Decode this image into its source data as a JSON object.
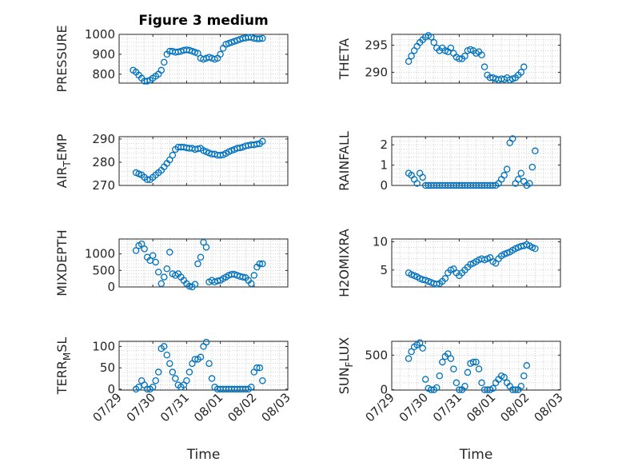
{
  "figure": {
    "title": "Figure 3 medium",
    "xlabel": "Time"
  },
  "chart_data": [
    {
      "type": "scatter",
      "title": "Figure 3 medium",
      "ylabel": "PRESSURE",
      "ylabel_sub": [],
      "ylim": [
        755,
        1000
      ],
      "yticks": [
        800,
        900,
        1000
      ],
      "ytick_labels": [
        "800",
        "900",
        "1000"
      ],
      "xlim": [
        "07/29",
        "08/03"
      ],
      "grid": "on",
      "x": [
        "07/29 10:00",
        "07/29 12:00",
        "07/29 14:00",
        "07/29 16:00",
        "07/29 18:00",
        "07/29 20:00",
        "07/29 22:00",
        "07/30 00:00",
        "07/30 02:00",
        "07/30 04:00",
        "07/30 06:00",
        "07/30 08:00",
        "07/30 10:00",
        "07/30 12:00",
        "07/30 14:00",
        "07/30 16:00",
        "07/30 18:00",
        "07/30 20:00",
        "07/30 22:00",
        "07/31 00:00",
        "07/31 02:00",
        "07/31 04:00",
        "07/31 06:00",
        "07/31 08:00",
        "07/31 10:00",
        "07/31 12:00",
        "07/31 14:00",
        "07/31 16:00",
        "07/31 18:00",
        "07/31 20:00",
        "07/31 22:00",
        "08/01 00:00",
        "08/01 02:00",
        "08/01 04:00",
        "08/01 06:00",
        "08/01 08:00",
        "08/01 10:00",
        "08/01 12:00",
        "08/01 14:00",
        "08/01 16:00",
        "08/01 18:00",
        "08/01 20:00",
        "08/01 22:00",
        "08/02 00:00",
        "08/02 02:00",
        "08/02 04:00",
        "08/02 06:00"
      ],
      "y": [
        820,
        810,
        795,
        780,
        765,
        765,
        770,
        780,
        790,
        800,
        820,
        860,
        900,
        915,
        915,
        910,
        912,
        915,
        920,
        922,
        920,
        915,
        910,
        905,
        880,
        875,
        880,
        885,
        880,
        875,
        880,
        900,
        930,
        950,
        955,
        960,
        965,
        970,
        975,
        980,
        982,
        985,
        985,
        980,
        978,
        978,
        980
      ]
    },
    {
      "type": "scatter",
      "ylabel": "THETA",
      "ylabel_sub": [],
      "ylim": [
        288,
        297
      ],
      "yticks": [
        290,
        295
      ],
      "ytick_labels": [
        "290",
        "295"
      ],
      "xlim": [
        "07/29",
        "08/03"
      ],
      "grid": "on",
      "x": [
        "07/29 12:00",
        "07/29 14:00",
        "07/29 16:00",
        "07/29 18:00",
        "07/29 20:00",
        "07/29 22:00",
        "07/30 00:00",
        "07/30 02:00",
        "07/30 04:00",
        "07/30 06:00",
        "07/30 08:00",
        "07/30 10:00",
        "07/30 12:00",
        "07/30 14:00",
        "07/30 16:00",
        "07/30 18:00",
        "07/30 20:00",
        "07/30 22:00",
        "07/31 00:00",
        "07/31 02:00",
        "07/31 04:00",
        "07/31 06:00",
        "07/31 08:00",
        "07/31 10:00",
        "07/31 12:00",
        "07/31 14:00",
        "07/31 16:00",
        "07/31 18:00",
        "07/31 20:00",
        "07/31 22:00",
        "08/01 00:00",
        "08/01 02:00",
        "08/01 04:00",
        "08/01 06:00",
        "08/01 08:00",
        "08/01 10:00",
        "08/01 12:00",
        "08/01 14:00",
        "08/01 16:00",
        "08/01 18:00",
        "08/01 20:00",
        "08/01 22:00",
        "08/02 00:00",
        "08/02 02:00",
        "08/02 04:00",
        "08/02 06:00"
      ],
      "y": [
        292,
        293,
        294,
        294.8,
        295.5,
        296,
        296.5,
        296.8,
        296.5,
        295.5,
        294.5,
        294,
        294.5,
        294,
        293.8,
        294.5,
        293.5,
        292.8,
        292.5,
        292.5,
        293,
        294,
        294.2,
        294,
        293.5,
        293.8,
        293.2,
        291,
        289.5,
        289,
        289,
        288.8,
        288.6,
        288.8,
        288.7,
        289,
        288.6,
        288.8,
        289,
        289.5,
        290,
        291,
        null,
        null,
        null,
        null
      ]
    },
    {
      "type": "scatter",
      "ylabel": "AIR",
      "ylabel_sub": [
        "T",
        "EMP"
      ],
      "ylim": [
        270,
        291
      ],
      "yticks": [
        270,
        280,
        290
      ],
      "ytick_labels": [
        "270",
        "280",
        "290"
      ],
      "xlim": [
        "07/29",
        "08/03"
      ],
      "grid": "on",
      "x": [
        "07/29 12:00",
        "07/29 14:00",
        "07/29 16:00",
        "07/29 18:00",
        "07/29 20:00",
        "07/29 22:00",
        "07/30 00:00",
        "07/30 02:00",
        "07/30 04:00",
        "07/30 06:00",
        "07/30 08:00",
        "07/30 10:00",
        "07/30 12:00",
        "07/30 14:00",
        "07/30 16:00",
        "07/30 18:00",
        "07/30 20:00",
        "07/30 22:00",
        "07/31 00:00",
        "07/31 02:00",
        "07/31 04:00",
        "07/31 06:00",
        "07/31 08:00",
        "07/31 10:00",
        "07/31 12:00",
        "07/31 14:00",
        "07/31 16:00",
        "07/31 18:00",
        "07/31 20:00",
        "07/31 22:00",
        "08/01 00:00",
        "08/01 02:00",
        "08/01 04:00",
        "08/01 06:00",
        "08/01 08:00",
        "08/01 10:00",
        "08/01 12:00",
        "08/01 14:00",
        "08/01 16:00",
        "08/01 18:00",
        "08/01 20:00",
        "08/01 22:00",
        "08/02 00:00",
        "08/02 02:00",
        "08/02 04:00",
        "08/02 06:00"
      ],
      "y": [
        275.5,
        275,
        274.5,
        273.5,
        272.5,
        272.5,
        273.5,
        274.5,
        275.5,
        276.5,
        278,
        279.5,
        281,
        283,
        285.5,
        286.5,
        286.5,
        286.5,
        286.2,
        286,
        286,
        285.5,
        285.8,
        286,
        285,
        284.5,
        284,
        283.5,
        283.5,
        283,
        283,
        283.2,
        283.8,
        284.5,
        285,
        285.5,
        286,
        286.2,
        286.5,
        287,
        287.2,
        287.5,
        287.5,
        287.8,
        288,
        289
      ]
    },
    {
      "type": "scatter",
      "ylabel": "RAINFALL",
      "ylabel_sub": [],
      "ylim": [
        0,
        2.4
      ],
      "yticks": [
        0,
        1,
        2
      ],
      "ytick_labels": [
        "0",
        "1",
        "2"
      ],
      "xlim": [
        "07/29",
        "08/03"
      ],
      "grid": "on",
      "x": [
        "07/29 12:00",
        "07/29 14:00",
        "07/29 16:00",
        "07/29 18:00",
        "07/29 20:00",
        "07/29 22:00",
        "07/30 00:00",
        "07/30 02:00",
        "07/30 04:00",
        "07/30 06:00",
        "07/30 08:00",
        "07/30 10:00",
        "07/30 12:00",
        "07/30 14:00",
        "07/30 16:00",
        "07/30 18:00",
        "07/30 20:00",
        "07/30 22:00",
        "07/31 00:00",
        "07/31 02:00",
        "07/31 04:00",
        "07/31 06:00",
        "07/31 08:00",
        "07/31 10:00",
        "07/31 12:00",
        "07/31 14:00",
        "07/31 16:00",
        "07/31 18:00",
        "07/31 20:00",
        "07/31 22:00",
        "08/01 00:00",
        "08/01 02:00",
        "08/01 04:00",
        "08/01 06:00",
        "08/01 08:00",
        "08/01 10:00",
        "08/01 12:00",
        "08/01 14:00",
        "08/01 16:00",
        "08/01 18:00",
        "08/01 20:00",
        "08/01 22:00",
        "08/02 00:00",
        "08/02 02:00",
        "08/02 04:00",
        "08/02 06:00"
      ],
      "y": [
        0.6,
        0.5,
        0.3,
        0.1,
        0.6,
        0.4,
        0,
        0,
        0,
        0,
        0,
        0,
        0,
        0,
        0,
        0,
        0,
        0,
        0,
        0,
        0,
        0,
        0,
        0,
        0,
        0,
        0,
        0,
        0,
        0,
        0,
        0,
        0.1,
        0.3,
        0.5,
        0.8,
        2.1,
        2.3,
        0.1,
        0.3,
        0.6,
        0.2,
        0,
        0.1,
        0.9,
        1.7
      ]
    },
    {
      "type": "scatter",
      "ylabel": "MIXDEPTH",
      "ylabel_sub": [],
      "ylim": [
        0,
        1450
      ],
      "yticks": [
        0,
        500,
        1000
      ],
      "ytick_labels": [
        "0",
        "500",
        "1000"
      ],
      "xlim": [
        "07/29",
        "08/03"
      ],
      "grid": "on",
      "x": [
        "07/29 12:00",
        "07/29 14:00",
        "07/29 16:00",
        "07/29 18:00",
        "07/29 20:00",
        "07/29 22:00",
        "07/30 00:00",
        "07/30 02:00",
        "07/30 04:00",
        "07/30 06:00",
        "07/30 08:00",
        "07/30 10:00",
        "07/30 12:00",
        "07/30 14:00",
        "07/30 16:00",
        "07/30 18:00",
        "07/30 20:00",
        "07/30 22:00",
        "07/31 00:00",
        "07/31 02:00",
        "07/31 04:00",
        "07/31 06:00",
        "07/31 08:00",
        "07/31 10:00",
        "07/31 12:00",
        "07/31 14:00",
        "07/31 16:00",
        "07/31 18:00",
        "07/31 20:00",
        "07/31 22:00",
        "08/01 00:00",
        "08/01 02:00",
        "08/01 04:00",
        "08/01 06:00",
        "08/01 08:00",
        "08/01 10:00",
        "08/01 12:00",
        "08/01 14:00",
        "08/01 16:00",
        "08/01 18:00",
        "08/01 20:00",
        "08/01 22:00",
        "08/02 00:00",
        "08/02 02:00",
        "08/02 04:00",
        "08/02 06:00"
      ],
      "y": [
        1100,
        1250,
        1300,
        1150,
        900,
        800,
        950,
        750,
        450,
        100,
        300,
        550,
        1050,
        400,
        350,
        400,
        300,
        200,
        100,
        20,
        0,
        80,
        700,
        900,
        1350,
        1200,
        150,
        200,
        150,
        180,
        200,
        250,
        300,
        350,
        380,
        380,
        350,
        320,
        300,
        280,
        200,
        100,
        350,
        600,
        700,
        700
      ]
    },
    {
      "type": "scatter",
      "ylabel": "H2OMIXRA",
      "ylabel_sub": [],
      "ylim": [
        2,
        10.5
      ],
      "yticks": [
        5,
        10
      ],
      "ytick_labels": [
        "5",
        "10"
      ],
      "xlim": [
        "07/29",
        "08/03"
      ],
      "grid": "on",
      "x": [
        "07/29 12:00",
        "07/29 14:00",
        "07/29 16:00",
        "07/29 18:00",
        "07/29 20:00",
        "07/29 22:00",
        "07/30 00:00",
        "07/30 02:00",
        "07/30 04:00",
        "07/30 06:00",
        "07/30 08:00",
        "07/30 10:00",
        "07/30 12:00",
        "07/30 14:00",
        "07/30 16:00",
        "07/30 18:00",
        "07/30 20:00",
        "07/30 22:00",
        "07/31 00:00",
        "07/31 02:00",
        "07/31 04:00",
        "07/31 06:00",
        "07/31 08:00",
        "07/31 10:00",
        "07/31 12:00",
        "07/31 14:00",
        "07/31 16:00",
        "07/31 18:00",
        "07/31 20:00",
        "07/31 22:00",
        "08/01 00:00",
        "08/01 02:00",
        "08/01 04:00",
        "08/01 06:00",
        "08/01 08:00",
        "08/01 10:00",
        "08/01 12:00",
        "08/01 14:00",
        "08/01 16:00",
        "08/01 18:00",
        "08/01 20:00",
        "08/01 22:00",
        "08/02 00:00",
        "08/02 02:00",
        "08/02 04:00",
        "08/02 06:00"
      ],
      "y": [
        4.5,
        4.2,
        4,
        3.8,
        3.5,
        3.3,
        3.2,
        3,
        2.8,
        2.6,
        2.5,
        2.6,
        3,
        3.5,
        4.5,
        5,
        5.2,
        4.5,
        4,
        4.5,
        5,
        5.5,
        6,
        6.2,
        6.5,
        6.8,
        7,
        6.8,
        7,
        7.2,
        6.5,
        6.2,
        7,
        7.5,
        7.8,
        8,
        8.2,
        8.5,
        8.8,
        9,
        9.2,
        9.3,
        9.5,
        9.3,
        9,
        8.8
      ]
    },
    {
      "type": "scatter",
      "ylabel": "TERR",
      "ylabel_sub": [
        "M",
        "SL"
      ],
      "ylim": [
        -2,
        112
      ],
      "yticks": [
        0,
        50,
        100
      ],
      "ytick_labels": [
        "0",
        "50",
        "100"
      ],
      "xlim": [
        "07/29",
        "08/03"
      ],
      "xticks": [
        "07/29",
        "07/30",
        "07/31",
        "08/01",
        "08/02",
        "08/03"
      ],
      "grid": "on",
      "x": [
        "07/29 12:00",
        "07/29 14:00",
        "07/29 16:00",
        "07/29 18:00",
        "07/29 20:00",
        "07/29 22:00",
        "07/30 00:00",
        "07/30 02:00",
        "07/30 04:00",
        "07/30 06:00",
        "07/30 08:00",
        "07/30 10:00",
        "07/30 12:00",
        "07/30 14:00",
        "07/30 16:00",
        "07/30 18:00",
        "07/30 20:00",
        "07/30 22:00",
        "07/31 00:00",
        "07/31 02:00",
        "07/31 04:00",
        "07/31 06:00",
        "07/31 08:00",
        "07/31 10:00",
        "07/31 12:00",
        "07/31 14:00",
        "07/31 16:00",
        "07/31 18:00",
        "07/31 20:00",
        "07/31 22:00",
        "08/01 00:00",
        "08/01 02:00",
        "08/01 04:00",
        "08/01 06:00",
        "08/01 08:00",
        "08/01 10:00",
        "08/01 12:00",
        "08/01 14:00",
        "08/01 16:00",
        "08/01 18:00",
        "08/01 20:00",
        "08/01 22:00",
        "08/02 00:00",
        "08/02 02:00",
        "08/02 04:00",
        "08/02 06:00"
      ],
      "y": [
        0,
        5,
        20,
        10,
        0,
        0,
        5,
        20,
        40,
        95,
        100,
        80,
        60,
        40,
        25,
        10,
        5,
        10,
        20,
        40,
        60,
        70,
        70,
        75,
        100,
        110,
        60,
        25,
        5,
        0,
        0,
        0,
        0,
        0,
        0,
        0,
        0,
        0,
        0,
        0,
        0,
        5,
        40,
        50,
        50,
        20
      ]
    },
    {
      "type": "scatter",
      "ylabel": "SUN",
      "ylabel_sub": [
        "F",
        "LUX"
      ],
      "ylim": [
        -5,
        700
      ],
      "yticks": [
        0,
        500
      ],
      "ytick_labels": [
        "0",
        "500"
      ],
      "xlim": [
        "07/29",
        "08/03"
      ],
      "xticks": [
        "07/29",
        "07/30",
        "07/31",
        "08/01",
        "08/02",
        "08/03"
      ],
      "grid": "on",
      "x": [
        "07/29 12:00",
        "07/29 14:00",
        "07/29 16:00",
        "07/29 18:00",
        "07/29 20:00",
        "07/29 22:00",
        "07/30 00:00",
        "07/30 02:00",
        "07/30 04:00",
        "07/30 06:00",
        "07/30 08:00",
        "07/30 10:00",
        "07/30 12:00",
        "07/30 14:00",
        "07/30 16:00",
        "07/30 18:00",
        "07/30 20:00",
        "07/30 22:00",
        "07/31 00:00",
        "07/31 02:00",
        "07/31 04:00",
        "07/31 06:00",
        "07/31 08:00",
        "07/31 10:00",
        "07/31 12:00",
        "07/31 14:00",
        "07/31 16:00",
        "07/31 18:00",
        "07/31 20:00",
        "07/31 22:00",
        "08/01 00:00",
        "08/01 02:00",
        "08/01 04:00",
        "08/01 06:00",
        "08/01 08:00",
        "08/01 10:00",
        "08/01 12:00",
        "08/01 14:00",
        "08/01 16:00",
        "08/01 18:00",
        "08/01 20:00",
        "08/01 22:00",
        "08/02 00:00",
        "08/02 02:00",
        "08/02 04:00",
        "08/02 06:00"
      ],
      "y": [
        450,
        550,
        620,
        650,
        680,
        600,
        150,
        20,
        0,
        0,
        30,
        200,
        400,
        480,
        520,
        450,
        300,
        100,
        0,
        0,
        50,
        250,
        380,
        400,
        400,
        300,
        100,
        0,
        0,
        0,
        20,
        100,
        150,
        200,
        180,
        100,
        50,
        0,
        0,
        0,
        50,
        200,
        350,
        null,
        null,
        null
      ]
    }
  ]
}
